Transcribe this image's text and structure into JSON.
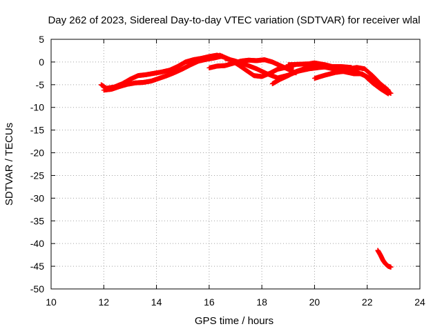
{
  "chart_data": {
    "type": "scatter",
    "title": "Day 262 of 2023, Sidereal Day-to-day VTEC variation (SDTVAR) for receiver wlal",
    "xlabel": "GPS time / hours",
    "ylabel": "SDTVAR / TECUs",
    "xlim": [
      10,
      24
    ],
    "ylim": [
      -50,
      5
    ],
    "xticks": [
      10,
      12,
      14,
      16,
      18,
      20,
      22,
      24
    ],
    "yticks": [
      5,
      0,
      -5,
      -10,
      -15,
      -20,
      -25,
      -30,
      -35,
      -40,
      -45,
      -50
    ],
    "grid": true,
    "marker": "plus",
    "color": "#ff0000",
    "series": [
      {
        "name": "arc-1-early",
        "x": [
          11.9,
          12.1,
          12.4,
          12.7,
          13.0,
          13.3,
          13.6,
          13.9,
          14.2,
          14.5,
          14.8,
          15.1,
          15.4,
          15.7,
          16.0,
          16.3,
          16.6
        ],
        "y": [
          -5.0,
          -5.8,
          -5.5,
          -4.8,
          -3.8,
          -3.0,
          -2.8,
          -2.5,
          -2.2,
          -1.8,
          -1.0,
          0.0,
          0.5,
          0.8,
          1.2,
          1.5,
          1.0
        ]
      },
      {
        "name": "arc-2-early",
        "x": [
          12.0,
          12.3,
          12.6,
          12.9,
          13.2,
          13.5,
          13.8,
          14.1,
          14.4,
          14.7,
          15.0,
          15.3,
          15.6,
          15.9,
          16.2,
          16.5
        ],
        "y": [
          -6.2,
          -6.0,
          -5.4,
          -4.9,
          -4.6,
          -4.5,
          -4.2,
          -3.6,
          -3.0,
          -2.3,
          -1.5,
          -0.6,
          0.2,
          0.6,
          0.9,
          1.3
        ]
      },
      {
        "name": "arc-3-mid",
        "x": [
          16.0,
          16.3,
          16.6,
          16.9,
          17.2,
          17.5,
          17.8,
          18.1,
          18.4,
          18.7,
          19.0,
          19.3
        ],
        "y": [
          -1.3,
          -0.9,
          -0.8,
          -0.3,
          0.2,
          0.4,
          0.3,
          0.5,
          0.0,
          -0.8,
          -1.6,
          -2.4
        ]
      },
      {
        "name": "arc-4-mid",
        "x": [
          16.4,
          16.8,
          17.1,
          17.4,
          17.7,
          18.0,
          18.3,
          18.6,
          18.9,
          19.2
        ],
        "y": [
          1.5,
          0.5,
          -0.6,
          -1.8,
          -3.0,
          -3.2,
          -2.5,
          -1.6,
          -1.2,
          -1.0
        ]
      },
      {
        "name": "arc-5-mid",
        "x": [
          16.6,
          17.0,
          17.4,
          17.8,
          18.2,
          18.6,
          19.0,
          19.4,
          19.8,
          20.2,
          20.6,
          21.0,
          21.4
        ],
        "y": [
          0.8,
          0.2,
          -0.6,
          -1.5,
          -2.6,
          -3.5,
          -2.9,
          -2.0,
          -1.5,
          -1.2,
          -1.0,
          -1.0,
          -1.2
        ]
      },
      {
        "name": "arc-6-mid",
        "x": [
          18.4,
          18.7,
          19.0,
          19.3,
          19.6,
          19.9,
          20.2,
          20.5,
          20.8,
          21.1,
          21.4
        ],
        "y": [
          -4.8,
          -3.8,
          -3.0,
          -2.1,
          -1.5,
          -0.9,
          -0.6,
          -0.8,
          -1.4,
          -1.9,
          -2.2
        ]
      },
      {
        "name": "arc-7-late",
        "x": [
          19.0,
          19.4,
          19.8,
          20.0,
          20.4,
          20.8,
          21.2,
          21.6,
          21.9,
          22.2,
          22.5,
          22.8
        ],
        "y": [
          -0.6,
          -0.5,
          -0.4,
          -0.2,
          -0.6,
          -1.2,
          -1.6,
          -1.2,
          -1.5,
          -3.0,
          -4.8,
          -6.2
        ]
      },
      {
        "name": "arc-8-late",
        "x": [
          20.0,
          20.4,
          20.8,
          21.2,
          21.6,
          21.9,
          22.2,
          22.5,
          22.8
        ],
        "y": [
          -3.6,
          -2.9,
          -2.3,
          -2.0,
          -2.2,
          -3.0,
          -4.6,
          -5.9,
          -7.0
        ]
      },
      {
        "name": "arc-9-late",
        "x": [
          20.3,
          20.7,
          21.1,
          21.5,
          21.8,
          22.1,
          22.4,
          22.7,
          22.9
        ],
        "y": [
          -1.0,
          -1.5,
          -2.1,
          -2.6,
          -2.6,
          -3.6,
          -5.2,
          -6.4,
          -6.9
        ]
      },
      {
        "name": "arc-10-outlier",
        "x": [
          22.4,
          22.5,
          22.6,
          22.7,
          22.8,
          22.9
        ],
        "y": [
          -41.5,
          -42.5,
          -43.7,
          -44.5,
          -45.0,
          -45.2
        ]
      }
    ]
  }
}
